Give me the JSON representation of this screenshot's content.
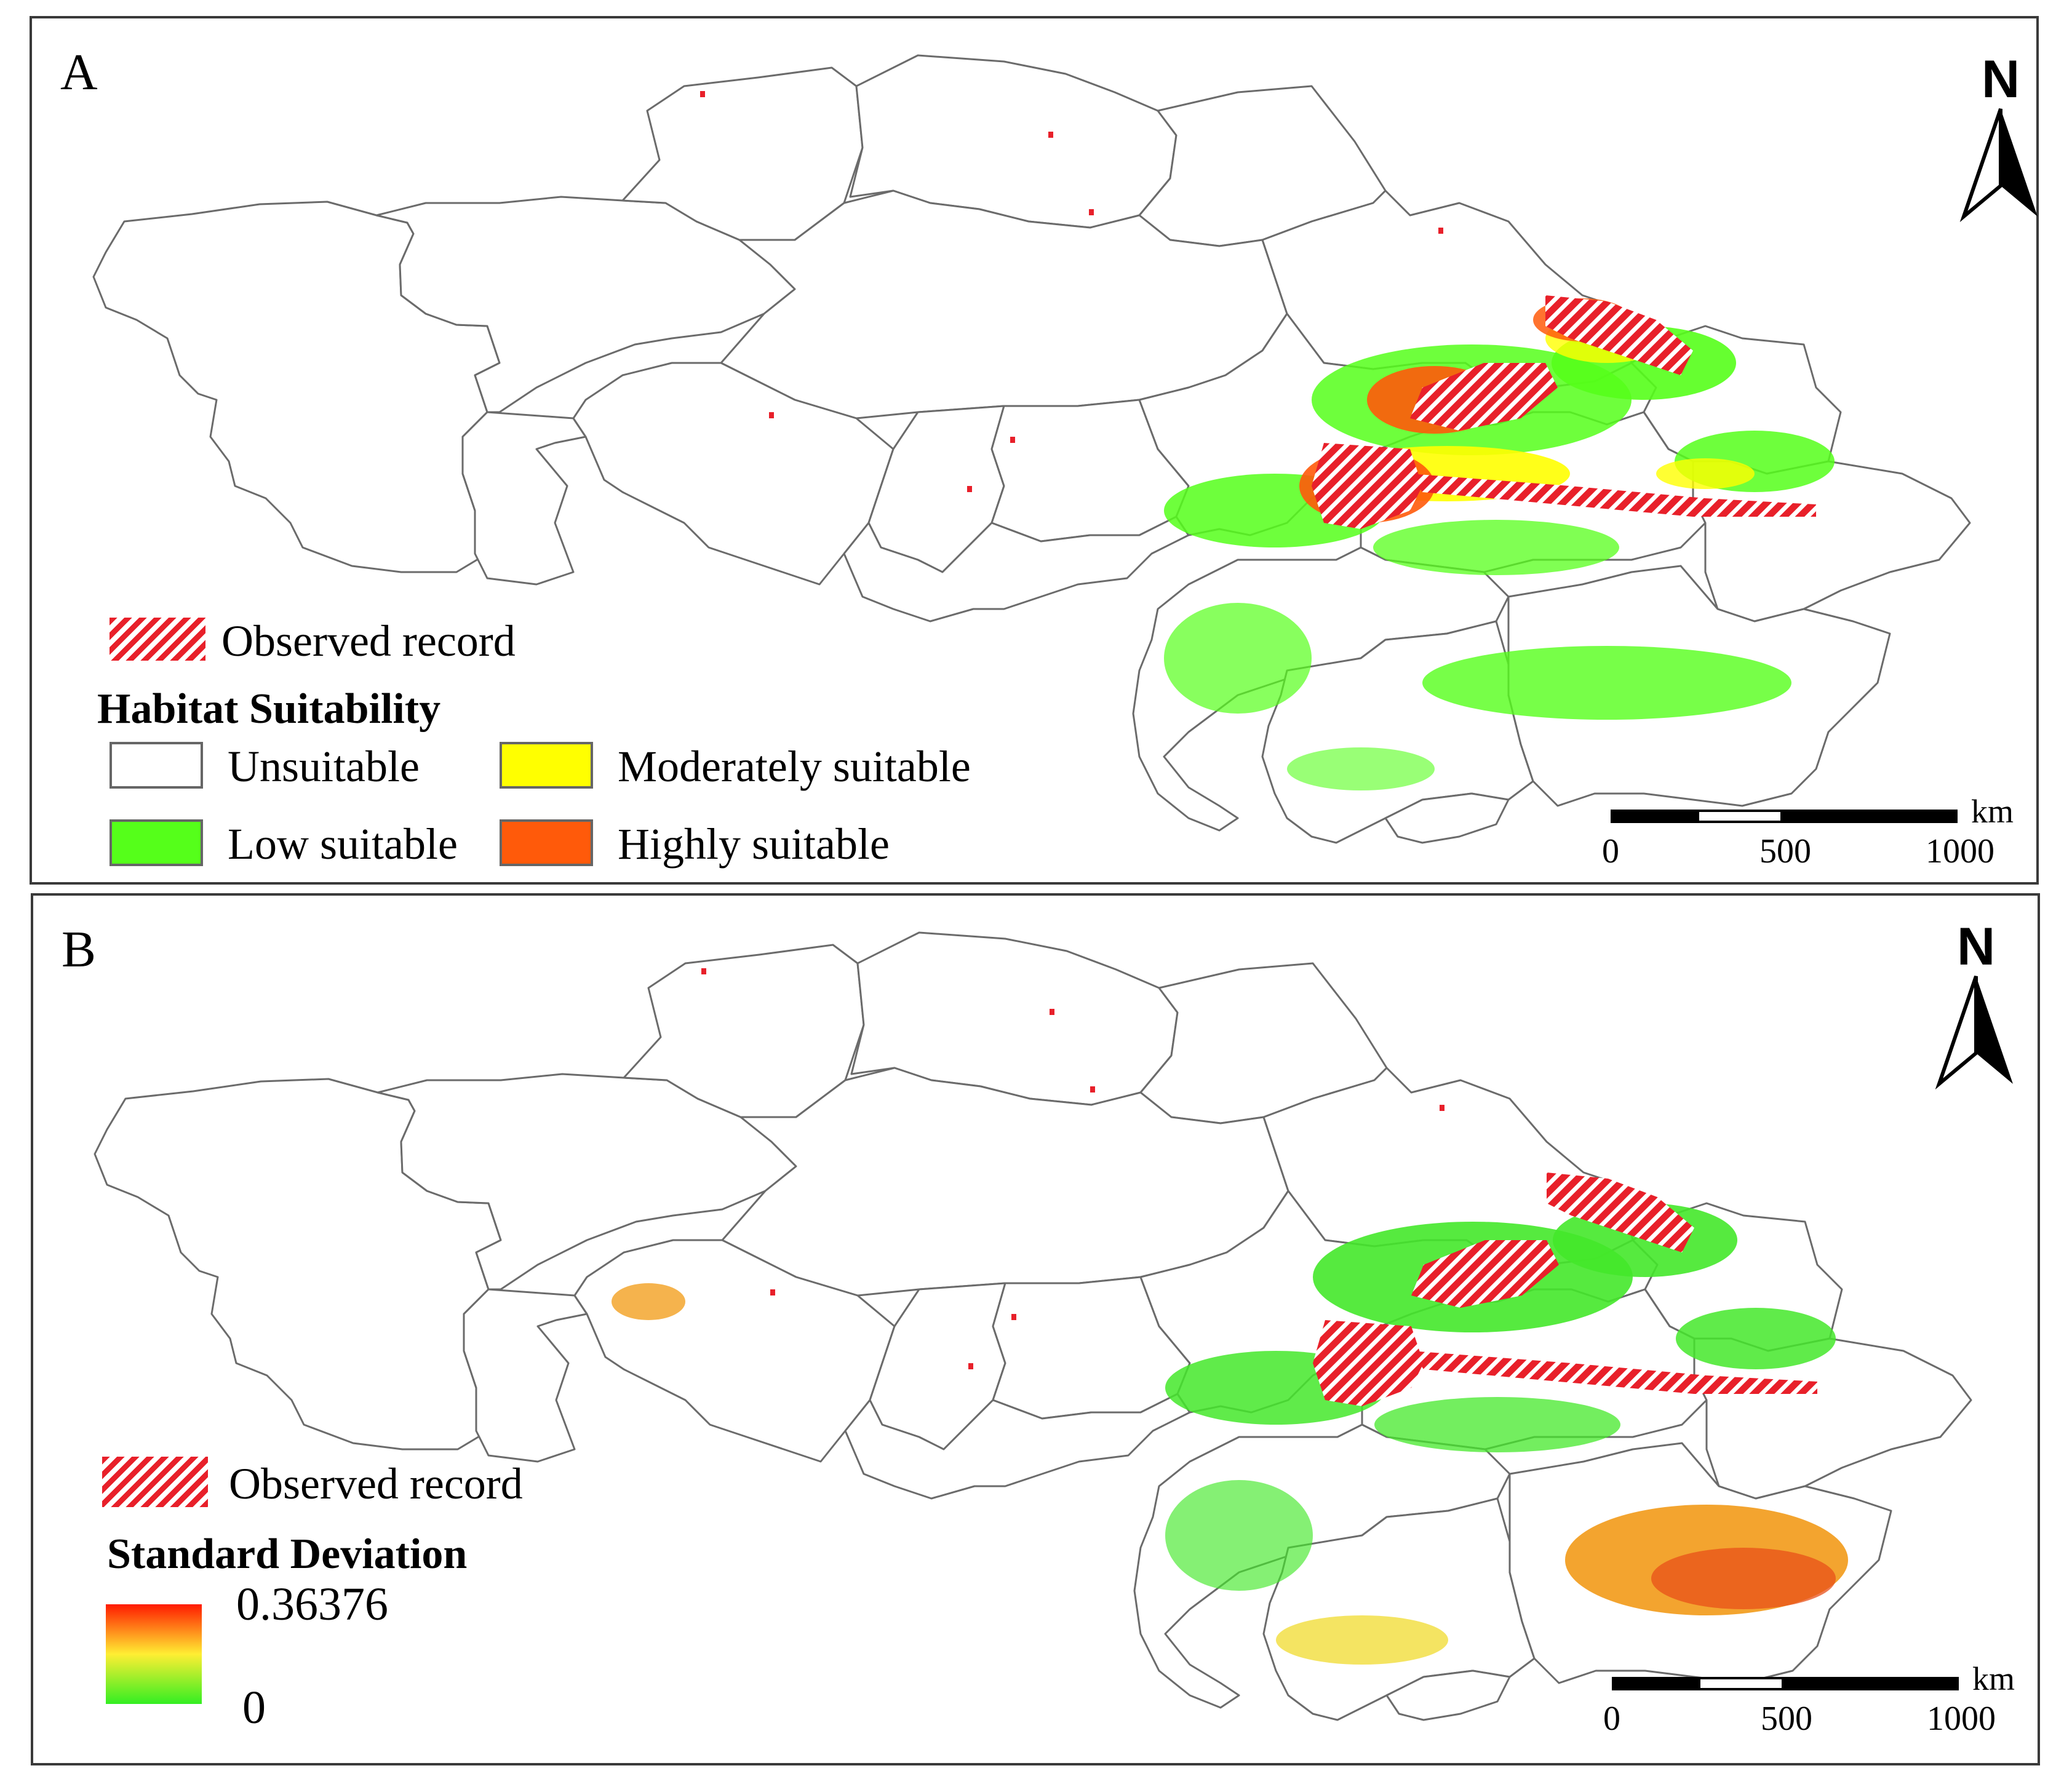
{
  "panels": [
    {
      "id": "A",
      "label": "A",
      "north": "N",
      "legend": {
        "observed": "Observed record",
        "title": "Habitat Suitability",
        "classes": [
          {
            "label": "Unsuitable",
            "color": "#ffffff"
          },
          {
            "label": "Moderately suitable",
            "color": "#ffff00"
          },
          {
            "label": "Low suitable",
            "color": "#55ff1a"
          },
          {
            "label": "Highly suitable",
            "color": "#ff5a0a"
          }
        ]
      },
      "scale": {
        "ticks": [
          "0",
          "500",
          "1000"
        ],
        "unit": "km"
      }
    },
    {
      "id": "B",
      "label": "B",
      "north": "N",
      "legend": {
        "observed": "Observed record",
        "title": "Standard Deviation",
        "max": "0.36376",
        "min": "0",
        "gradient": [
          "#ff1a00",
          "#ffee33",
          "#33ee22"
        ]
      },
      "scale": {
        "ticks": [
          "0",
          "500",
          "1000"
        ],
        "unit": "km"
      }
    }
  ],
  "colors": {
    "border": "#6b6b6b",
    "hatch": "#e8202a",
    "green": "#55ff1a",
    "yellow": "#ffff00",
    "orange": "#ff5a0a",
    "red": "#e8202a"
  }
}
